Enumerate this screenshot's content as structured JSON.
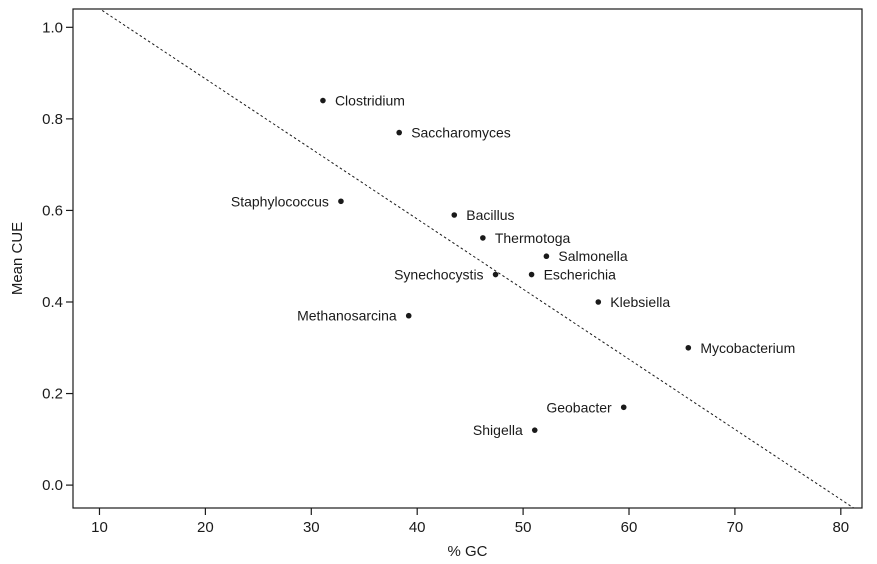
{
  "chart_data": {
    "type": "scatter",
    "title": "",
    "xlabel": "% GC",
    "ylabel": "Mean CUE",
    "xlim": [
      7.5,
      82
    ],
    "ylim": [
      -0.05,
      1.04
    ],
    "xticks": [
      10,
      20,
      30,
      40,
      50,
      60,
      70,
      80
    ],
    "yticks": [
      0.0,
      0.2,
      0.4,
      0.6,
      0.8,
      1.0
    ],
    "ytick_labels": [
      "0.0",
      "0.2",
      "0.4",
      "0.6",
      "0.8",
      "1.0"
    ],
    "grid": false,
    "points": [
      {
        "label": "Clostridium",
        "x": 31.1,
        "y": 0.84,
        "label_side": "right"
      },
      {
        "label": "Saccharomyces",
        "x": 38.3,
        "y": 0.77,
        "label_side": "right"
      },
      {
        "label": "Staphylococcus",
        "x": 32.8,
        "y": 0.62,
        "label_side": "left"
      },
      {
        "label": "Bacillus",
        "x": 43.5,
        "y": 0.59,
        "label_side": "right"
      },
      {
        "label": "Thermotoga",
        "x": 46.2,
        "y": 0.54,
        "label_side": "right"
      },
      {
        "label": "Salmonella",
        "x": 52.2,
        "y": 0.5,
        "label_side": "right"
      },
      {
        "label": "Synechocystis",
        "x": 47.4,
        "y": 0.46,
        "label_side": "left"
      },
      {
        "label": "Escherichia",
        "x": 50.8,
        "y": 0.46,
        "label_side": "right"
      },
      {
        "label": "Klebsiella",
        "x": 57.1,
        "y": 0.4,
        "label_side": "right"
      },
      {
        "label": "Methanosarcina",
        "x": 39.2,
        "y": 0.37,
        "label_side": "left"
      },
      {
        "label": "Mycobacterium",
        "x": 65.6,
        "y": 0.3,
        "label_side": "right"
      },
      {
        "label": "Geobacter",
        "x": 59.5,
        "y": 0.17,
        "label_side": "left"
      },
      {
        "label": "Shigella",
        "x": 51.1,
        "y": 0.12,
        "label_side": "left"
      }
    ],
    "trend_line": {
      "style": "dashed",
      "x": [
        7.5,
        82
      ],
      "y": [
        1.079,
        -0.062
      ]
    }
  }
}
